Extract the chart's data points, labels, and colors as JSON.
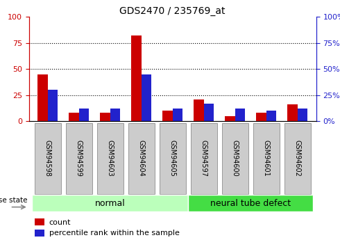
{
  "title": "GDS2470 / 235769_at",
  "samples": [
    "GSM94598",
    "GSM94599",
    "GSM94603",
    "GSM94604",
    "GSM94605",
    "GSM94597",
    "GSM94600",
    "GSM94601",
    "GSM94602"
  ],
  "count_values": [
    45,
    8,
    8,
    82,
    10,
    21,
    5,
    8,
    16
  ],
  "percentile_values": [
    30,
    12,
    12,
    45,
    12,
    17,
    12,
    10,
    12
  ],
  "red_color": "#CC0000",
  "blue_color": "#2222CC",
  "normal_indices": [
    0,
    1,
    2,
    3,
    4
  ],
  "defect_indices": [
    5,
    6,
    7,
    8
  ],
  "normal_label": "normal",
  "defect_label": "neural tube defect",
  "disease_state_label": "disease state",
  "legend_count": "count",
  "legend_percentile": "percentile rank within the sample",
  "ylim": [
    0,
    100
  ],
  "yticks": [
    0,
    25,
    50,
    75,
    100
  ],
  "bar_width": 0.32,
  "normal_bg": "#BBFFBB",
  "defect_bg": "#44DD44",
  "left_axis_color": "#CC0000",
  "right_axis_color": "#2222CC",
  "tick_bg": "#CCCCCC",
  "tick_edge": "#999999"
}
